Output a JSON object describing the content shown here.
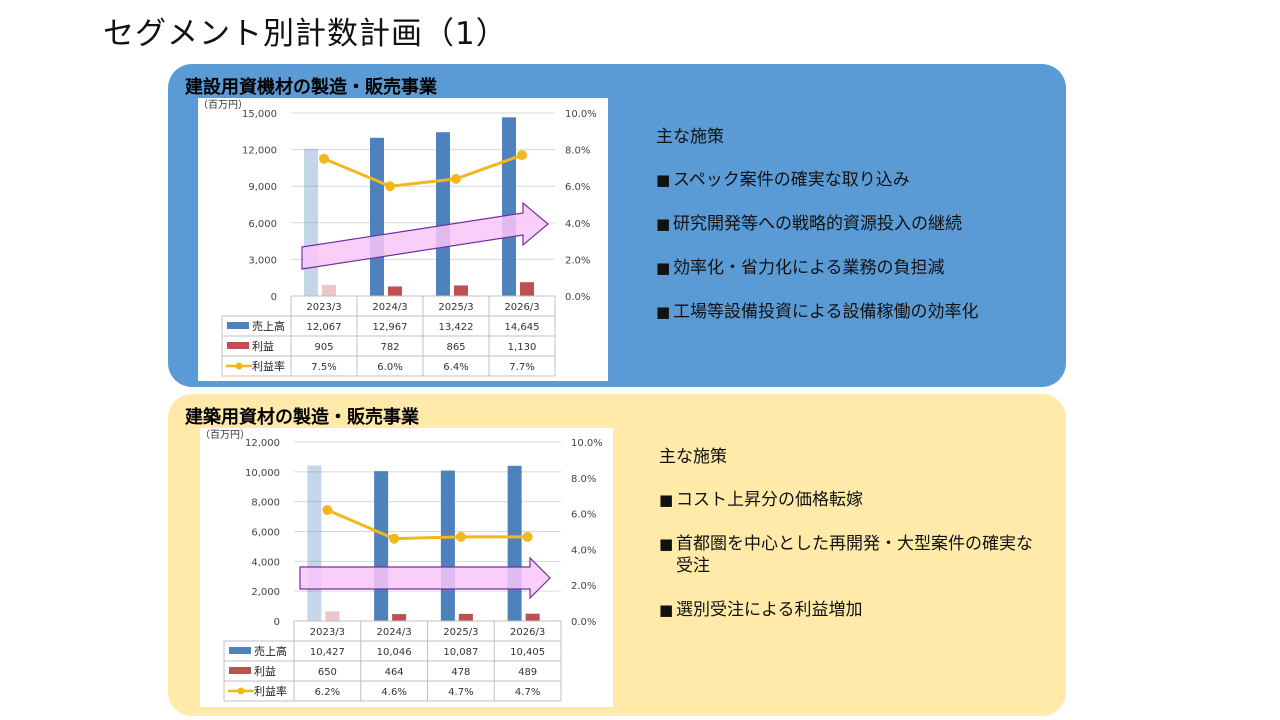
{
  "page": {
    "title": "セグメント別計数計画（1）"
  },
  "colors": {
    "sales": "#4f81bd",
    "profit": "#c0504d",
    "rate": "#f0b81a",
    "arrow_fill": "#f8c6f8",
    "arrow_stroke": "#7030a0"
  },
  "segments": [
    {
      "title": "建設用資機材の製造・販売事業",
      "measures_heading": "主な施策",
      "measures": [
        "スペック案件の確実な取り込み",
        "研究開発等への戦略的資源投入の継続",
        "効率化・省力化による業務の負担減",
        "工場等設備投資による設備稼働の効率化"
      ]
    },
    {
      "title": "建築用資材の製造・販売事業",
      "measures_heading": "主な施策",
      "measures": [
        "コスト上昇分の価格転嫁",
        "首都圏を中心とした再開発・大型案件の確実な受注",
        "選別受注による利益増加"
      ]
    }
  ],
  "chart_data": [
    {
      "type": "bar",
      "unit_label": "（百万円）",
      "categories": [
        "2023/3",
        "2024/3",
        "2025/3",
        "2026/3"
      ],
      "series": [
        {
          "name": "売上高",
          "values": [
            12067,
            12967,
            13422,
            14645
          ],
          "labels": [
            "12,067",
            "12,967",
            "13,422",
            "14,645"
          ]
        },
        {
          "name": "利益",
          "values": [
            905,
            782,
            865,
            1130
          ],
          "labels": [
            "905",
            "782",
            "865",
            "1,130"
          ]
        },
        {
          "name": "利益率",
          "type": "line",
          "axis": "right",
          "values": [
            7.5,
            6.0,
            6.4,
            7.7
          ],
          "labels": [
            "7.5%",
            "6.0%",
            "6.4%",
            "7.7%"
          ]
        }
      ],
      "ylim": [
        0,
        15000
      ],
      "y_ticks": [
        "0",
        "3,000",
        "6,000",
        "9,000",
        "12,000",
        "15,000"
      ],
      "y2lim": [
        0,
        10
      ],
      "y2_ticks": [
        "0.0%",
        "2.0%",
        "4.0%",
        "6.0%",
        "8.0%",
        "10.0%"
      ],
      "grid": true,
      "legend": "data-table"
    },
    {
      "type": "bar",
      "unit_label": "（百万円）",
      "categories": [
        "2023/3",
        "2024/3",
        "2025/3",
        "2026/3"
      ],
      "series": [
        {
          "name": "売上高",
          "values": [
            10427,
            10046,
            10087,
            10405
          ],
          "labels": [
            "10,427",
            "10,046",
            "10,087",
            "10,405"
          ]
        },
        {
          "name": "利益",
          "values": [
            650,
            464,
            478,
            489
          ],
          "labels": [
            "650",
            "464",
            "478",
            "489"
          ]
        },
        {
          "name": "利益率",
          "type": "line",
          "axis": "right",
          "values": [
            6.2,
            4.6,
            4.7,
            4.7
          ],
          "labels": [
            "6.2%",
            "4.6%",
            "4.7%",
            "4.7%"
          ]
        }
      ],
      "ylim": [
        0,
        12000
      ],
      "y_ticks": [
        "0",
        "2,000",
        "4,000",
        "6,000",
        "8,000",
        "10,000",
        "12,000"
      ],
      "y2lim": [
        0,
        10
      ],
      "y2_ticks": [
        "0.0%",
        "2.0%",
        "4.0%",
        "6.0%",
        "8.0%",
        "10.0%"
      ],
      "grid": true,
      "legend": "data-table"
    }
  ]
}
